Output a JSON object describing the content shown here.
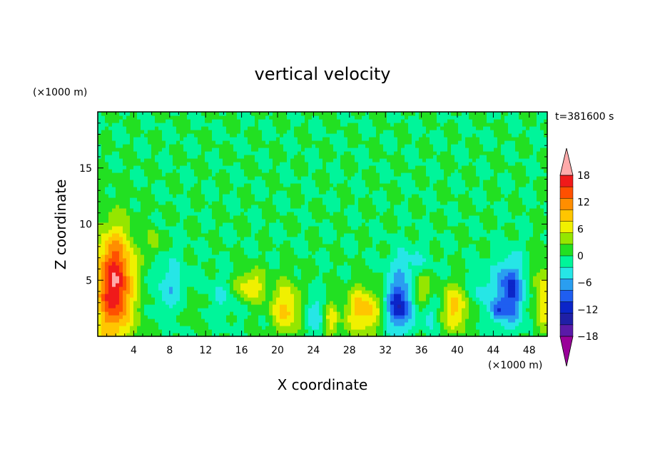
{
  "chart_data": {
    "type": "heatmap",
    "title": "vertical velocity",
    "xlabel": "X coordinate",
    "ylabel": "Z coordinate",
    "x_unit": "(×1000 m)",
    "y_unit": "(×1000 m)",
    "time_label": "t=381600 s",
    "xlim": [
      0,
      50
    ],
    "ylim": [
      0,
      20
    ],
    "x_ticks": [
      4,
      8,
      12,
      16,
      20,
      24,
      28,
      32,
      36,
      40,
      44,
      48
    ],
    "y_ticks": [
      5,
      10,
      15
    ],
    "colorbar": {
      "ticks": [
        18,
        12,
        6,
        0,
        -6,
        -12,
        -18
      ],
      "levels": [
        -21,
        -18,
        -15,
        -12,
        -9,
        -6,
        -3,
        0,
        3,
        6,
        9,
        12,
        15,
        18,
        21
      ],
      "colors": [
        "#990099",
        "#5a1aa8",
        "#1f1fa6",
        "#0b25c8",
        "#1f5ef0",
        "#2a9ef0",
        "#26e6e6",
        "#00f59a",
        "#22e022",
        "#95e600",
        "#f0f000",
        "#ffc600",
        "#ff8e00",
        "#ff5000",
        "#f01a1a",
        "#ffaaaa"
      ],
      "extend": "both"
    },
    "background_value": 0,
    "features": [
      {
        "x": 2.0,
        "z": 5.0,
        "sx": 1.4,
        "sz": 3.2,
        "w": 16
      },
      {
        "x": 1.0,
        "z": 3.0,
        "sx": 2.2,
        "sz": 4.0,
        "w": 6
      },
      {
        "x": 6.2,
        "z": 8.5,
        "sx": 0.5,
        "sz": 0.9,
        "w": 6
      },
      {
        "x": 8.0,
        "z": 4.5,
        "sx": 1.3,
        "sz": 1.8,
        "w": -5
      },
      {
        "x": 10.5,
        "z": 2.5,
        "sx": 0.5,
        "sz": 0.9,
        "w": 4
      },
      {
        "x": 17.0,
        "z": 4.5,
        "sx": 1.2,
        "sz": 1.0,
        "w": 9
      },
      {
        "x": 21.0,
        "z": 2.5,
        "sx": 1.2,
        "sz": 1.6,
        "w": 10
      },
      {
        "x": 24.0,
        "z": 2.0,
        "sx": 0.9,
        "sz": 1.3,
        "w": -5
      },
      {
        "x": 26.0,
        "z": 1.5,
        "sx": 0.5,
        "sz": 1.2,
        "w": 8
      },
      {
        "x": 29.5,
        "z": 2.3,
        "sx": 1.4,
        "sz": 1.5,
        "w": 11
      },
      {
        "x": 33.5,
        "z": 2.8,
        "sx": 1.0,
        "sz": 1.6,
        "w": -15
      },
      {
        "x": 36.0,
        "z": 4.3,
        "sx": 0.6,
        "sz": 1.0,
        "w": 8
      },
      {
        "x": 34.5,
        "z": 6.5,
        "sx": 1.5,
        "sz": 1.2,
        "w": -4
      },
      {
        "x": 39.8,
        "z": 2.5,
        "sx": 1.1,
        "sz": 1.5,
        "w": 10
      },
      {
        "x": 37.0,
        "z": 2.0,
        "sx": 0.6,
        "sz": 1.0,
        "w": -5
      },
      {
        "x": 45.8,
        "z": 4.0,
        "sx": 1.1,
        "sz": 2.0,
        "w": -13
      },
      {
        "x": 44.5,
        "z": 2.2,
        "sx": 0.5,
        "sz": 0.6,
        "w": -8
      },
      {
        "x": 42.5,
        "z": 4.0,
        "sx": 1.0,
        "sz": 1.2,
        "w": -4
      },
      {
        "x": 49.5,
        "z": 3.5,
        "sx": 0.7,
        "sz": 2.5,
        "w": 8
      },
      {
        "x": 14.0,
        "z": 3.5,
        "sx": 1.2,
        "sz": 1.4,
        "w": -3
      }
    ]
  }
}
